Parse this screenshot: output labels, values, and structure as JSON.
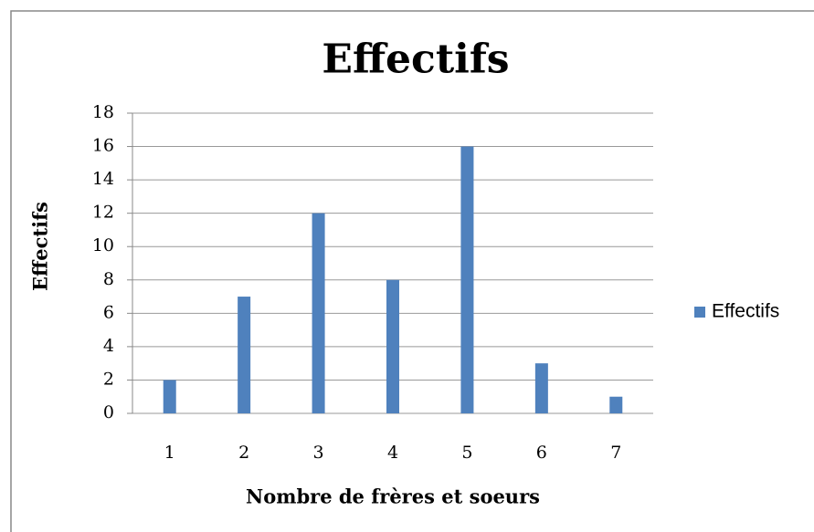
{
  "chart_data": {
    "type": "bar",
    "title": "Effectifs",
    "y_label": "Effectifs",
    "x_label": "Nombre de  frères et  soeurs",
    "categories": [
      "1",
      "2",
      "3",
      "4",
      "5",
      "6",
      "7"
    ],
    "series": [
      {
        "name": "Effectifs",
        "color": "#4f81bd",
        "values": [
          2,
          7,
          12,
          8,
          16,
          3,
          1
        ]
      }
    ],
    "ylim": [
      0,
      18
    ],
    "yticks": [
      0,
      2,
      4,
      6,
      8,
      10,
      12,
      14,
      16,
      18
    ],
    "grid": true,
    "legend": "right"
  }
}
